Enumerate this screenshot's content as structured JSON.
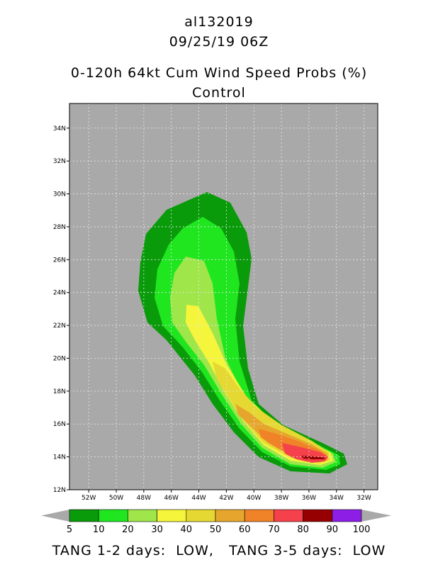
{
  "header": {
    "storm_id": "al132019",
    "datetime": "09/25/19 06Z",
    "product_title": "0-120h 64kt Cum Wind Speed Probs (%)",
    "run_label": "Control"
  },
  "map": {
    "background_color": "#a9a9a9",
    "lat_labels": [
      "12N",
      "14N",
      "16N",
      "18N",
      "20N",
      "22N",
      "24N",
      "26N",
      "28N",
      "30N",
      "32N",
      "34N"
    ],
    "lon_labels": [
      "52W",
      "50W",
      "48W",
      "46W",
      "44W",
      "42W",
      "40W",
      "38W",
      "36W",
      "34W",
      "32W"
    ],
    "lat_range": [
      12,
      35.5
    ],
    "lon_range": [
      -53.4,
      -31.0
    ],
    "grid": true
  },
  "colorbar": {
    "labels": [
      "5",
      "10",
      "20",
      "30",
      "40",
      "50",
      "60",
      "70",
      "80",
      "90",
      "100"
    ],
    "colors": [
      "#0a9b0a",
      "#1fe61f",
      "#9ee64a",
      "#f5f53c",
      "#e6d832",
      "#e6a62d",
      "#f08228",
      "#f5414b",
      "#960000",
      "#8c1ee6"
    ]
  },
  "footer": {
    "text": "TANG 1-2 days:  LOW,   TANG 3-5 days:  LOW"
  }
}
